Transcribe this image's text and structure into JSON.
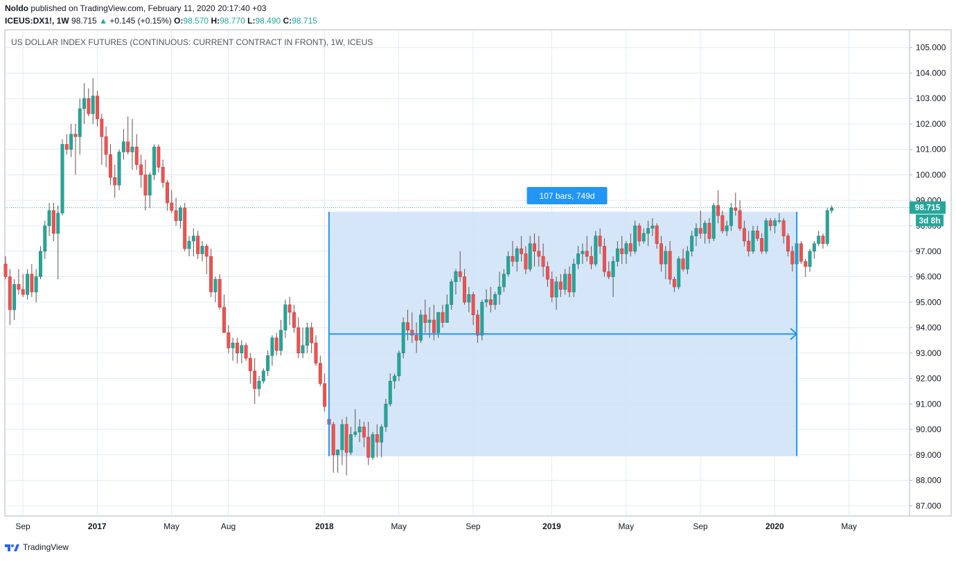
{
  "header": {
    "author": "Noldo",
    "published_text": "published on TradingView.com, February 11, 2020 20:17:40 +03",
    "symbol": "ICEUS:DX1!,",
    "interval": "1W",
    "last": "98.715",
    "change": "+0.145 (+0.15%)",
    "open_label": "O:",
    "open": "98.570",
    "high_label": "H:",
    "high": "98.770",
    "low_label": "L:",
    "low": "98.490",
    "close_label": "C:",
    "close": "98.715"
  },
  "footer": {
    "brand": "TradingView"
  },
  "colors": {
    "up": "#26a69a",
    "down": "#ef5350",
    "up_wick": "#4a5a52",
    "down_wick": "#7a4a4a",
    "measure_fill": "#cfe3f7",
    "measure_line": "#2196f3",
    "label_bg": "#2196f3",
    "price_tag": "#26a69a",
    "price_line": "#26a69a",
    "grid": "#e3eaf0"
  },
  "chart_data": {
    "type": "candlestick",
    "title": "US DOLLAR INDEX FUTURES (CONTINUOUS: CURRENT CONTRACT IN FRONT), 1W, ICEUS",
    "ylim": [
      86.6,
      105.7
    ],
    "y_ticks": [
      "105.000",
      "104.000",
      "103.000",
      "102.000",
      "101.000",
      "100.000",
      "99.000",
      "98.000",
      "97.000",
      "96.000",
      "95.000",
      "94.000",
      "93.000",
      "92.000",
      "91.000",
      "90.000",
      "89.000",
      "88.000",
      "87.000"
    ],
    "x_ticks": [
      {
        "label": "Sep",
        "bold": false,
        "week": 0
      },
      {
        "label": "2017",
        "bold": true,
        "week": 17
      },
      {
        "label": "May",
        "bold": false,
        "week": 34
      },
      {
        "label": "Aug",
        "bold": false,
        "week": 47
      },
      {
        "label": "2018",
        "bold": true,
        "week": 69
      },
      {
        "label": "May",
        "bold": false,
        "week": 86
      },
      {
        "label": "Sep",
        "bold": false,
        "week": 103
      },
      {
        "label": "2019",
        "bold": true,
        "week": 121
      },
      {
        "label": "May",
        "bold": false,
        "week": 138
      },
      {
        "label": "Sep",
        "bold": false,
        "week": 155
      },
      {
        "label": "2020",
        "bold": true,
        "week": 172
      },
      {
        "label": "May",
        "bold": false,
        "week": 189
      }
    ],
    "candles": [
      [
        96.5,
        96.8,
        95.9,
        96.0
      ],
      [
        96.0,
        96.3,
        94.1,
        94.7
      ],
      [
        94.7,
        95.9,
        94.3,
        95.7
      ],
      [
        95.7,
        96.3,
        95.3,
        95.5
      ],
      [
        95.5,
        96.1,
        95.2,
        95.3
      ],
      [
        95.3,
        96.3,
        95.1,
        96.1
      ],
      [
        96.1,
        96.5,
        95.2,
        95.4
      ],
      [
        95.4,
        96.3,
        95.0,
        96.0
      ],
      [
        96.0,
        97.2,
        95.9,
        97.0
      ],
      [
        97.0,
        98.2,
        96.7,
        98.0
      ],
      [
        98.0,
        98.9,
        97.6,
        98.6
      ],
      [
        98.6,
        98.9,
        97.4,
        97.7
      ],
      [
        97.7,
        98.8,
        95.9,
        98.5
      ],
      [
        98.5,
        101.4,
        98.4,
        101.2
      ],
      [
        101.2,
        101.6,
        100.8,
        101.0
      ],
      [
        101.0,
        102.0,
        100.7,
        101.6
      ],
      [
        101.6,
        102.0,
        100.0,
        101.5
      ],
      [
        101.5,
        103.0,
        100.8,
        102.6
      ],
      [
        102.6,
        103.6,
        102.0,
        103.0
      ],
      [
        103.0,
        103.4,
        102.3,
        102.4
      ],
      [
        102.4,
        103.8,
        102.0,
        103.1
      ],
      [
        103.1,
        103.3,
        101.9,
        102.2
      ],
      [
        102.2,
        102.4,
        100.4,
        101.5
      ],
      [
        101.5,
        101.9,
        100.3,
        100.8
      ],
      [
        100.8,
        101.2,
        99.6,
        99.9
      ],
      [
        99.9,
        100.4,
        99.1,
        99.6
      ],
      [
        99.6,
        101.0,
        99.4,
        100.9
      ],
      [
        100.9,
        101.8,
        100.6,
        101.3
      ],
      [
        101.3,
        102.3,
        100.8,
        100.9
      ],
      [
        100.9,
        102.2,
        100.2,
        101.1
      ],
      [
        101.1,
        101.6,
        100.2,
        100.4
      ],
      [
        100.4,
        100.8,
        99.5,
        100.0
      ],
      [
        100.0,
        100.6,
        98.6,
        99.2
      ],
      [
        99.2,
        100.1,
        98.7,
        100.0
      ],
      [
        100.0,
        101.2,
        99.8,
        101.1
      ],
      [
        101.1,
        101.2,
        100.1,
        100.3
      ],
      [
        100.3,
        100.6,
        99.5,
        99.7
      ],
      [
        99.7,
        99.8,
        98.6,
        98.9
      ],
      [
        98.9,
        99.4,
        98.5,
        98.6
      ],
      [
        98.6,
        99.1,
        98.0,
        98.2
      ],
      [
        98.2,
        98.8,
        97.9,
        98.7
      ],
      [
        98.7,
        98.9,
        97.0,
        97.1
      ],
      [
        97.1,
        97.6,
        96.8,
        97.4
      ],
      [
        97.4,
        97.9,
        96.8,
        97.6
      ],
      [
        97.6,
        97.8,
        96.7,
        96.9
      ],
      [
        96.9,
        97.4,
        96.6,
        97.2
      ],
      [
        97.2,
        97.3,
        96.1,
        96.8
      ],
      [
        96.8,
        97.1,
        95.2,
        95.4
      ],
      [
        95.4,
        96.0,
        95.0,
        95.9
      ],
      [
        95.9,
        96.1,
        94.7,
        94.8
      ],
      [
        94.8,
        95.3,
        93.8,
        93.8
      ],
      [
        93.8,
        94.1,
        93.0,
        93.2
      ],
      [
        93.2,
        93.6,
        92.7,
        93.4
      ],
      [
        93.4,
        93.6,
        92.6,
        93.0
      ],
      [
        93.0,
        93.5,
        92.6,
        93.3
      ],
      [
        93.3,
        93.4,
        92.7,
        92.8
      ],
      [
        92.8,
        93.0,
        91.8,
        92.3
      ],
      [
        92.3,
        92.8,
        91.0,
        91.6
      ],
      [
        91.6,
        92.1,
        91.3,
        91.9
      ],
      [
        91.9,
        92.4,
        91.8,
        92.3
      ],
      [
        92.3,
        93.1,
        92.1,
        92.9
      ],
      [
        92.9,
        93.7,
        92.5,
        93.6
      ],
      [
        93.6,
        93.8,
        92.9,
        93.1
      ],
      [
        93.1,
        94.3,
        92.9,
        93.9
      ],
      [
        93.9,
        95.1,
        93.6,
        94.9
      ],
      [
        94.9,
        95.2,
        94.1,
        94.6
      ],
      [
        94.6,
        94.9,
        93.8,
        94.0
      ],
      [
        94.0,
        94.4,
        92.8,
        93.0
      ],
      [
        93.0,
        94.0,
        92.8,
        93.3
      ],
      [
        93.3,
        94.2,
        93.0,
        94.0
      ],
      [
        94.0,
        94.2,
        93.0,
        93.4
      ],
      [
        93.4,
        93.7,
        92.5,
        92.6
      ],
      [
        92.6,
        92.9,
        91.7,
        91.8
      ],
      [
        91.8,
        92.2,
        90.7,
        90.9
      ],
      [
        90.4,
        90.6,
        89.7,
        90.2
      ],
      [
        90.2,
        90.3,
        88.3,
        89.0
      ],
      [
        89.0,
        89.2,
        88.3,
        89.2
      ],
      [
        89.2,
        90.4,
        88.6,
        90.2
      ],
      [
        90.2,
        90.5,
        88.2,
        89.1
      ],
      [
        89.1,
        90.1,
        89.0,
        89.8
      ],
      [
        89.8,
        90.8,
        89.7,
        89.9
      ],
      [
        89.9,
        90.4,
        89.5,
        90.1
      ],
      [
        90.1,
        90.3,
        89.3,
        89.7
      ],
      [
        89.7,
        90.3,
        88.6,
        88.9
      ],
      [
        88.9,
        89.9,
        88.8,
        89.8
      ],
      [
        89.8,
        90.2,
        88.9,
        89.5
      ],
      [
        89.5,
        90.2,
        88.9,
        90.1
      ],
      [
        90.1,
        91.2,
        89.9,
        91.0
      ],
      [
        91.0,
        92.2,
        90.9,
        91.9
      ],
      [
        91.9,
        92.2,
        91.6,
        92.1
      ],
      [
        92.1,
        93.1,
        91.9,
        93.0
      ],
      [
        93.0,
        94.4,
        92.8,
        94.2
      ],
      [
        94.2,
        94.7,
        93.5,
        93.9
      ],
      [
        93.9,
        94.6,
        93.4,
        93.7
      ],
      [
        93.7,
        94.2,
        93.0,
        93.5
      ],
      [
        93.5,
        94.7,
        93.4,
        94.5
      ],
      [
        94.5,
        95.1,
        93.8,
        94.2
      ],
      [
        94.2,
        94.8,
        93.6,
        94.3
      ],
      [
        94.3,
        94.9,
        93.5,
        93.8
      ],
      [
        93.8,
        94.6,
        93.6,
        94.6
      ],
      [
        94.6,
        94.9,
        94.0,
        94.2
      ],
      [
        94.2,
        95.3,
        94.2,
        94.9
      ],
      [
        94.9,
        95.9,
        94.7,
        95.8
      ],
      [
        95.8,
        96.3,
        95.3,
        96.2
      ],
      [
        96.2,
        97.0,
        95.8,
        96.0
      ],
      [
        96.0,
        96.3,
        94.9,
        95.0
      ],
      [
        95.0,
        95.6,
        94.6,
        95.3
      ],
      [
        95.3,
        95.4,
        94.1,
        94.5
      ],
      [
        94.5,
        94.7,
        93.4,
        93.7
      ],
      [
        93.7,
        95.1,
        93.5,
        95.0
      ],
      [
        95.0,
        95.5,
        94.8,
        95.1
      ],
      [
        95.1,
        95.6,
        94.6,
        94.9
      ],
      [
        94.9,
        95.4,
        94.7,
        95.3
      ],
      [
        95.3,
        96.2,
        94.9,
        95.6
      ],
      [
        95.6,
        96.3,
        95.4,
        96.1
      ],
      [
        96.1,
        97.0,
        96.0,
        96.8
      ],
      [
        96.8,
        97.4,
        96.4,
        96.6
      ],
      [
        96.6,
        97.2,
        96.2,
        97.1
      ],
      [
        97.1,
        97.6,
        96.6,
        96.9
      ],
      [
        96.9,
        97.2,
        96.1,
        96.3
      ],
      [
        96.3,
        97.6,
        96.2,
        97.3
      ],
      [
        97.3,
        97.7,
        96.4,
        97.0
      ],
      [
        97.0,
        97.6,
        96.4,
        96.8
      ],
      [
        96.8,
        97.3,
        96.0,
        96.4
      ],
      [
        96.4,
        96.6,
        95.6,
        95.9
      ],
      [
        95.9,
        96.2,
        95.0,
        95.2
      ],
      [
        95.2,
        96.0,
        94.7,
        95.8
      ],
      [
        95.8,
        96.1,
        95.2,
        95.5
      ],
      [
        95.5,
        96.3,
        95.3,
        96.1
      ],
      [
        96.1,
        96.4,
        95.2,
        95.4
      ],
      [
        95.4,
        96.7,
        95.2,
        96.5
      ],
      [
        96.5,
        97.2,
        96.3,
        96.9
      ],
      [
        96.9,
        97.3,
        96.5,
        97.0
      ],
      [
        97.0,
        97.6,
        96.6,
        96.8
      ],
      [
        96.8,
        97.2,
        96.3,
        96.5
      ],
      [
        96.5,
        97.8,
        96.4,
        97.6
      ],
      [
        97.6,
        97.9,
        96.9,
        97.2
      ],
      [
        97.2,
        97.5,
        96.0,
        96.2
      ],
      [
        96.2,
        96.6,
        95.9,
        96.0
      ],
      [
        96.0,
        96.8,
        95.2,
        96.6
      ],
      [
        96.6,
        97.4,
        96.4,
        97.1
      ],
      [
        97.1,
        97.6,
        96.5,
        96.9
      ],
      [
        96.9,
        97.4,
        96.5,
        97.3
      ],
      [
        97.3,
        97.7,
        96.8,
        97.0
      ],
      [
        97.0,
        98.2,
        96.9,
        98.0
      ],
      [
        98.0,
        98.1,
        97.2,
        97.4
      ],
      [
        97.4,
        97.9,
        97.3,
        97.7
      ],
      [
        97.7,
        98.2,
        97.2,
        97.9
      ],
      [
        97.9,
        98.3,
        97.6,
        98.0
      ],
      [
        98.0,
        98.1,
        97.1,
        97.3
      ],
      [
        97.3,
        97.6,
        96.2,
        96.5
      ],
      [
        96.5,
        97.2,
        95.9,
        97.0
      ],
      [
        97.0,
        97.4,
        95.7,
        95.9
      ],
      [
        95.9,
        96.0,
        95.4,
        95.6
      ],
      [
        95.6,
        96.8,
        95.5,
        96.7
      ],
      [
        96.7,
        97.1,
        96.2,
        96.3
      ],
      [
        96.3,
        97.2,
        96.1,
        97.0
      ],
      [
        97.0,
        97.8,
        96.8,
        97.6
      ],
      [
        97.6,
        98.1,
        97.2,
        97.9
      ],
      [
        97.9,
        98.6,
        97.5,
        97.7
      ],
      [
        97.7,
        98.2,
        97.3,
        98.1
      ],
      [
        98.1,
        98.3,
        97.3,
        97.5
      ],
      [
        97.5,
        98.9,
        97.4,
        98.8
      ],
      [
        98.8,
        99.4,
        98.1,
        98.4
      ],
      [
        98.4,
        98.6,
        97.7,
        97.8
      ],
      [
        97.8,
        98.2,
        97.6,
        98.0
      ],
      [
        98.0,
        98.9,
        97.8,
        98.7
      ],
      [
        98.7,
        99.3,
        98.4,
        98.6
      ],
      [
        98.6,
        99.0,
        97.8,
        97.9
      ],
      [
        97.9,
        98.2,
        97.2,
        97.4
      ],
      [
        97.4,
        97.8,
        96.8,
        97.0
      ],
      [
        97.0,
        98.0,
        96.9,
        97.8
      ],
      [
        97.8,
        98.0,
        97.4,
        97.5
      ],
      [
        97.5,
        97.7,
        96.9,
        97.0
      ],
      [
        97.0,
        98.3,
        96.9,
        98.2
      ],
      [
        98.2,
        98.3,
        97.8,
        98.0
      ],
      [
        98.0,
        98.3,
        97.7,
        98.2
      ],
      [
        98.2,
        98.5,
        98.1,
        98.2
      ],
      [
        98.2,
        98.3,
        97.3,
        97.6
      ],
      [
        97.6,
        97.7,
        96.8,
        97.0
      ],
      [
        97.0,
        97.2,
        96.2,
        96.5
      ],
      [
        96.5,
        97.5,
        96.3,
        97.3
      ],
      [
        97.3,
        97.4,
        96.5,
        96.6
      ],
      [
        96.6,
        96.7,
        96.0,
        96.4
      ],
      [
        96.4,
        97.1,
        96.2,
        97.0
      ],
      [
        97.0,
        97.4,
        96.7,
        97.3
      ],
      [
        97.3,
        97.8,
        97.2,
        97.6
      ],
      [
        97.6,
        97.7,
        97.1,
        97.3
      ],
      [
        97.3,
        98.7,
        97.2,
        98.6
      ],
      [
        98.6,
        98.8,
        98.5,
        98.7
      ]
    ],
    "measure": {
      "label": "107 bars, 749d",
      "start_week": 74,
      "end_week": 181,
      "price_top": 98.55,
      "price_bottom": 88.95,
      "arrow_price": 93.75
    },
    "last_price": "98.715",
    "countdown": "3d 8h"
  }
}
